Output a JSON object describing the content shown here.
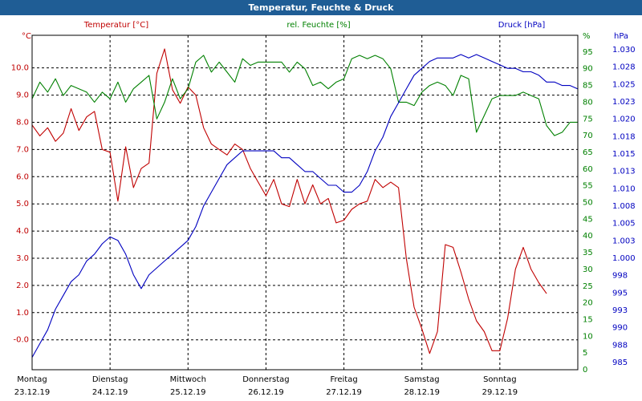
{
  "window": {
    "title": "Temperatur, Feuchte & Druck"
  },
  "colors": {
    "temp": "#c00000",
    "hum": "#008000",
    "press": "#0000c0",
    "grid": "#000000"
  },
  "chart_data": {
    "type": "line",
    "title": "Temperatur, Feuchte & Druck",
    "legend": {
      "temp": "Temperatur [°C]",
      "hum": "rel. Feuchte [%]",
      "press": "Druck [hPa]"
    },
    "axis_units": {
      "temp": "°C",
      "hum": "%",
      "press": "hPa"
    },
    "x_ticks": [
      {
        "day": "Montag",
        "date": "23.12.19"
      },
      {
        "day": "Dienstag",
        "date": "24.12.19"
      },
      {
        "day": "Mittwoch",
        "date": "25.12.19"
      },
      {
        "day": "Donnerstag",
        "date": "26.12.19"
      },
      {
        "day": "Freitag",
        "date": "27.12.19"
      },
      {
        "day": "Samstag",
        "date": "28.12.19"
      },
      {
        "day": "Sonntag",
        "date": "29.12.19"
      }
    ],
    "xlim": [
      0,
      7
    ],
    "temp_axis": {
      "ylim": [
        -1.1,
        11.2
      ],
      "ticks": [
        -0.0,
        1.0,
        2.0,
        3.0,
        4.0,
        5.0,
        6.0,
        7.0,
        8.0,
        9.0,
        10.0
      ],
      "tick_labels": [
        "-0.0",
        "1.0",
        "2.0",
        "3.0",
        "4.0",
        "5.0",
        "6.0",
        "7.0",
        "8.0",
        "9.0",
        "10.0"
      ]
    },
    "hum_axis": {
      "ylim": [
        0,
        100
      ],
      "ticks": [
        0,
        5,
        10,
        15,
        20,
        25,
        30,
        35,
        40,
        45,
        50,
        55,
        60,
        65,
        70,
        75,
        80,
        85,
        90,
        95
      ],
      "tick_labels": [
        "0",
        "5",
        "10",
        "15",
        "20",
        "25",
        "30",
        "35",
        "40",
        "45",
        "50",
        "55",
        "60",
        "65",
        "70",
        "75",
        "80",
        "85",
        "90",
        "95"
      ]
    },
    "press_axis": {
      "ylim": [
        984.2,
        1032.8
      ],
      "tick_labels": [
        "985",
        "988",
        "990",
        "993",
        "995",
        "998",
        "1.000",
        "1.003",
        "1.005",
        "1.008",
        "1.010",
        "1.013",
        "1.015",
        "1.018",
        "1.020",
        "1.023",
        "1.025",
        "1.028",
        "1.030"
      ]
    },
    "series": [
      {
        "name": "Temperatur [°C]",
        "axis": "temp",
        "x": [
          0,
          0.1,
          0.2,
          0.3,
          0.4,
          0.5,
          0.6,
          0.7,
          0.8,
          0.9,
          1.0,
          1.1,
          1.2,
          1.3,
          1.4,
          1.5,
          1.6,
          1.7,
          1.8,
          1.9,
          2.0,
          2.1,
          2.2,
          2.3,
          2.4,
          2.5,
          2.6,
          2.7,
          2.8,
          2.9,
          3.0,
          3.1,
          3.2,
          3.3,
          3.4,
          3.5,
          3.6,
          3.7,
          3.8,
          3.9,
          4.0,
          4.1,
          4.2,
          4.3,
          4.4,
          4.5,
          4.6,
          4.7,
          4.8,
          4.9,
          5.0,
          5.1,
          5.2,
          5.3,
          5.4,
          5.5,
          5.6,
          5.7,
          5.8,
          5.9,
          6.0,
          6.1,
          6.2,
          6.3,
          6.4,
          6.5,
          6.6,
          6.7,
          6.8,
          6.9,
          7.0
        ],
        "values": [
          7.9,
          7.5,
          7.8,
          7.3,
          7.6,
          8.5,
          7.7,
          8.2,
          8.4,
          7.0,
          6.9,
          5.1,
          7.1,
          5.6,
          6.3,
          6.5,
          9.8,
          10.7,
          9.2,
          8.7,
          9.3,
          9.0,
          7.8,
          7.2,
          7.0,
          6.8,
          7.2,
          7.0,
          6.3,
          5.8,
          5.3,
          5.9,
          5.0,
          4.9,
          5.9,
          5.0,
          5.7,
          5.0,
          5.2,
          4.3,
          4.4,
          4.8,
          5.0,
          5.1,
          5.9,
          5.6,
          5.8,
          5.6,
          3.0,
          1.2,
          0.4,
          -0.5,
          0.3,
          3.5,
          3.4,
          2.5,
          1.5,
          0.7,
          0.3,
          -0.4,
          -0.4,
          0.8,
          2.6,
          3.4,
          2.6,
          2.1,
          1.7,
          null,
          null,
          null,
          null
        ]
      },
      {
        "name": "rel. Feuchte [%]",
        "axis": "hum",
        "x": [
          0,
          0.1,
          0.2,
          0.3,
          0.4,
          0.5,
          0.6,
          0.7,
          0.8,
          0.9,
          1.0,
          1.1,
          1.2,
          1.3,
          1.4,
          1.5,
          1.6,
          1.7,
          1.8,
          1.9,
          2.0,
          2.1,
          2.2,
          2.3,
          2.4,
          2.5,
          2.6,
          2.7,
          2.8,
          2.9,
          3.0,
          3.1,
          3.2,
          3.3,
          3.4,
          3.5,
          3.6,
          3.7,
          3.8,
          3.9,
          4.0,
          4.1,
          4.2,
          4.3,
          4.4,
          4.5,
          4.6,
          4.7,
          4.8,
          4.9,
          5.0,
          5.1,
          5.2,
          5.3,
          5.4,
          5.5,
          5.6,
          5.7,
          5.8,
          5.9,
          6.0,
          6.1,
          6.2,
          6.3,
          6.4,
          6.5,
          6.6,
          6.7,
          6.8,
          6.9,
          7.0
        ],
        "values": [
          81,
          86,
          83,
          87,
          82,
          85,
          84,
          83,
          80,
          83,
          81,
          86,
          80,
          84,
          86,
          88,
          75,
          80,
          87,
          81,
          84,
          92,
          94,
          89,
          92,
          89,
          86,
          93,
          91,
          92,
          92,
          92,
          92,
          89,
          92,
          90,
          85,
          86,
          84,
          86,
          87,
          93,
          94,
          93,
          94,
          93,
          90,
          80,
          80,
          79,
          83,
          85,
          86,
          85,
          82,
          88,
          87,
          71,
          76,
          81,
          82,
          82,
          82,
          83,
          82,
          81,
          73,
          70,
          71,
          74,
          74
        ]
      },
      {
        "name": "Druck [hPa]",
        "axis": "press",
        "x": [
          0,
          0.1,
          0.2,
          0.3,
          0.4,
          0.5,
          0.6,
          0.7,
          0.8,
          0.9,
          1.0,
          1.1,
          1.2,
          1.3,
          1.4,
          1.5,
          1.6,
          1.7,
          1.8,
          1.9,
          2.0,
          2.1,
          2.2,
          2.3,
          2.4,
          2.5,
          2.6,
          2.7,
          2.8,
          2.9,
          3.0,
          3.1,
          3.2,
          3.3,
          3.4,
          3.5,
          3.6,
          3.7,
          3.8,
          3.9,
          4.0,
          4.1,
          4.2,
          4.3,
          4.4,
          4.5,
          4.6,
          4.7,
          4.8,
          4.9,
          5.0,
          5.1,
          5.2,
          5.3,
          5.4,
          5.5,
          5.6,
          5.7,
          5.8,
          5.9,
          6.0,
          6.1,
          6.2,
          6.3,
          6.4,
          6.5,
          6.6,
          6.7,
          6.8,
          6.9,
          7.0
        ],
        "values": [
          986,
          988,
          990,
          993,
          995,
          997,
          998,
          1000,
          1001,
          1002.5,
          1003.5,
          1003,
          1001,
          998,
          996,
          998,
          999,
          1000,
          1001,
          1002,
          1003,
          1005,
          1008,
          1010,
          1012,
          1014,
          1015,
          1016,
          1016,
          1016,
          1016,
          1016,
          1015,
          1015,
          1014,
          1013,
          1013,
          1012,
          1011,
          1011,
          1010,
          1010,
          1011,
          1013,
          1016,
          1018,
          1021,
          1023,
          1025,
          1027,
          1028,
          1029,
          1029.5,
          1029.5,
          1029.5,
          1030,
          1029.5,
          1030,
          1029.5,
          1029,
          1028.5,
          1028,
          1028,
          1027.5,
          1027.5,
          1027,
          1026,
          1026,
          1025.5,
          1025.5,
          1025
        ]
      }
    ]
  }
}
